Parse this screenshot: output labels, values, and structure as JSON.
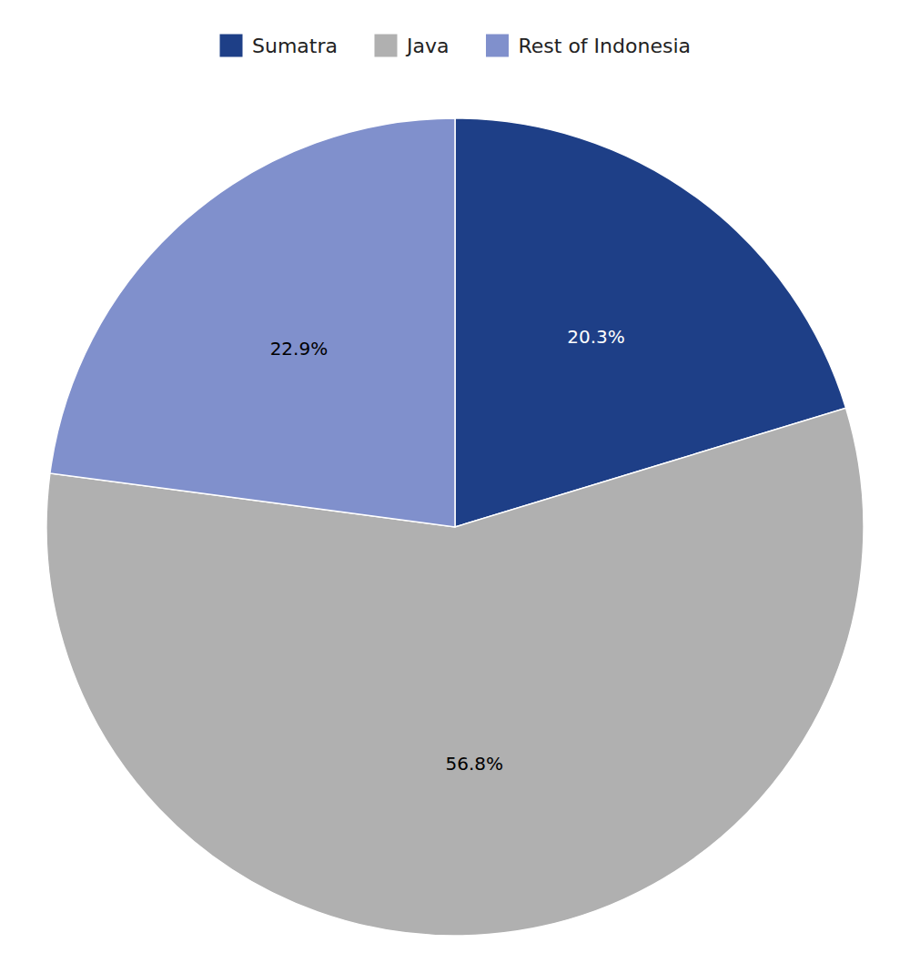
{
  "chart_data": {
    "type": "pie",
    "categories": [
      "Sumatra",
      "Java",
      "Rest of Indonesia"
    ],
    "values": [
      20.3,
      56.8,
      22.9
    ],
    "value_labels": [
      "20.3%",
      "56.8%",
      "22.9%"
    ],
    "colors": [
      "#1e3f87",
      "#b0b0b0",
      "#8090cc"
    ],
    "data_labels": true,
    "legend": "top"
  }
}
